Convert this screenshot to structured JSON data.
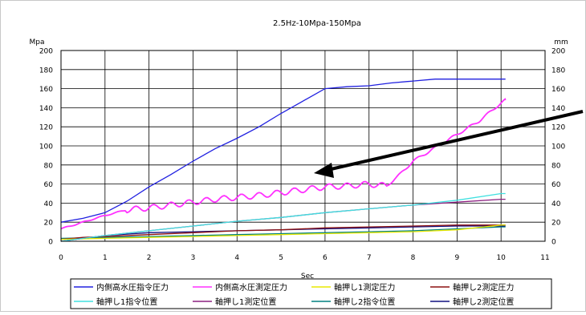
{
  "chart_data": {
    "type": "line",
    "title": "2.5Hz-10Mpa-150Mpa",
    "xlabel": "Sec",
    "ylabel_left": "Mpa",
    "ylabel_right": "mm",
    "xlim": [
      0,
      11
    ],
    "ylim": [
      0,
      200
    ],
    "y2lim": [
      0,
      200
    ],
    "x_ticks": [
      "0",
      "1",
      "2",
      "3",
      "4",
      "5",
      "6",
      "7",
      "8",
      "9",
      "10",
      "11"
    ],
    "y_ticks": [
      "0",
      "20",
      "40",
      "60",
      "80",
      "100",
      "120",
      "140",
      "160",
      "180",
      "200"
    ],
    "y2_ticks": [
      "0",
      "20",
      "40",
      "60",
      "80",
      "100",
      "120",
      "140",
      "160",
      "180",
      "200"
    ],
    "grid": true,
    "legend_position": "bottom",
    "series": [
      {
        "name": "内側高水圧指令圧力",
        "color": "#2020e0",
        "x": [
          0,
          0.5,
          1,
          1.5,
          2,
          2.5,
          3,
          3.5,
          4,
          4.5,
          5,
          5.5,
          6,
          6.5,
          7,
          7.5,
          8,
          8.5,
          9,
          9.5,
          10,
          10.1
        ],
        "y": [
          20,
          24,
          30,
          42,
          57,
          70,
          84,
          97,
          108,
          120,
          134,
          147,
          160,
          162,
          163,
          166,
          168,
          170,
          170,
          170,
          170,
          170
        ]
      },
      {
        "name": "内側高水圧測定圧力",
        "color": "#ff30ff",
        "x": [
          0,
          0.5,
          1,
          1.5,
          2,
          2.5,
          3,
          3.5,
          4,
          4.5,
          5,
          5.5,
          6,
          6.5,
          7,
          7.4,
          7.7,
          8,
          8.5,
          9,
          9.5,
          10,
          10.1
        ],
        "y": [
          13,
          20,
          27,
          33,
          35,
          38,
          41,
          44,
          46,
          48,
          51,
          54,
          57,
          58,
          60,
          58,
          70,
          84,
          98,
          112,
          126,
          145,
          148
        ]
      },
      {
        "name": "軸押し1測定圧力",
        "color": "#e8e800",
        "x": [
          0,
          1,
          2,
          3,
          4,
          5,
          6,
          7,
          8,
          9,
          10,
          10.1
        ],
        "y": [
          2,
          3,
          4,
          5,
          6,
          7,
          8,
          9,
          10,
          12,
          17,
          17
        ]
      },
      {
        "name": "軸押し2測定圧力",
        "color": "#8b1010",
        "x": [
          0,
          0.5,
          1,
          2,
          3,
          4,
          5,
          6,
          7,
          8,
          9,
          10,
          10.1
        ],
        "y": [
          2,
          4,
          5,
          7,
          9,
          11,
          12,
          14,
          15,
          16,
          17,
          17,
          17
        ]
      },
      {
        "name": "軸押し1指令位置",
        "color": "#40e0e0",
        "x": [
          0,
          1,
          2,
          3,
          4,
          5,
          6,
          7,
          8,
          9,
          10,
          10.1
        ],
        "y": [
          0,
          6,
          11,
          16,
          21,
          25,
          30,
          34,
          38,
          43,
          50,
          50
        ]
      },
      {
        "name": "軸押し1測定位置",
        "color": "#8b2080",
        "x": [
          0,
          1,
          2,
          3,
          4,
          5,
          6,
          7,
          8,
          9,
          10,
          10.1
        ],
        "y": [
          0,
          6,
          11,
          16,
          21,
          25,
          30,
          34,
          38,
          41,
          44,
          44
        ]
      },
      {
        "name": "軸押し2指令位置",
        "color": "#008080",
        "x": [
          0,
          1,
          2,
          3,
          4,
          5,
          6,
          7,
          8,
          9,
          10,
          10.1
        ],
        "y": [
          3,
          4,
          5,
          6,
          7,
          8,
          9,
          10,
          11,
          13,
          15,
          15
        ]
      },
      {
        "name": "軸押し2測定位置",
        "color": "#101080",
        "x": [
          0,
          1,
          2,
          3,
          4,
          5,
          6,
          7,
          8,
          9,
          10,
          10.1
        ],
        "y": [
          0,
          6,
          9,
          10,
          11,
          12,
          13,
          14,
          15,
          16,
          16,
          16
        ]
      }
    ]
  }
}
